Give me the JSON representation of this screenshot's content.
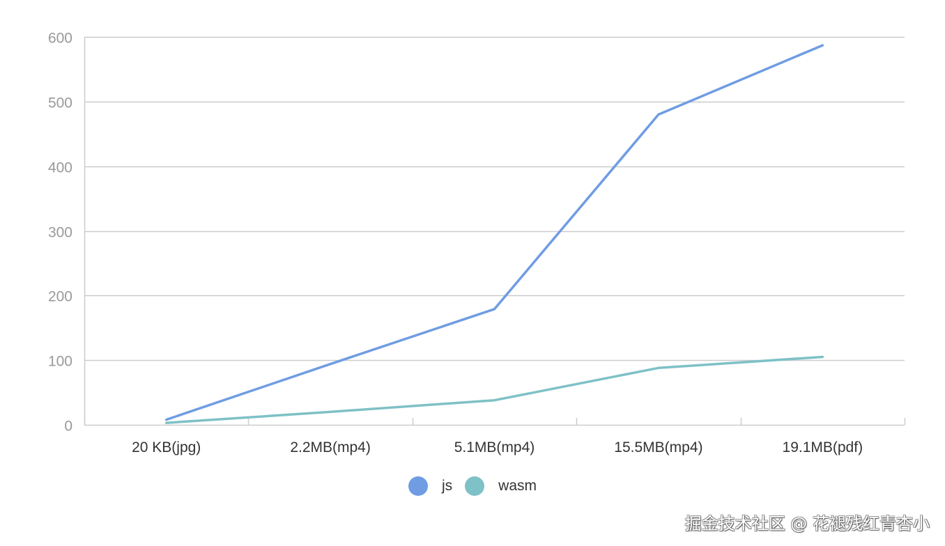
{
  "chart_data": {
    "type": "line",
    "title": "",
    "xlabel": "",
    "ylabel": "",
    "categories": [
      "20 KB(jpg)",
      "2.2MB(mp4)",
      "5.1MB(mp4)",
      "15.5MB(mp4)",
      "19.1MB(pdf)"
    ],
    "series": [
      {
        "name": "js",
        "color": "#6f9ce3",
        "values": [
          8,
          94,
          179,
          480,
          587
        ]
      },
      {
        "name": "wasm",
        "color": "#7ec1c6",
        "values": [
          3,
          20,
          38,
          88,
          105
        ]
      }
    ],
    "ylim": [
      0,
      600
    ],
    "yticks": [
      0,
      100,
      200,
      300,
      400,
      500,
      600
    ],
    "grid": true,
    "legend_position": "bottom"
  },
  "axis": {
    "yticks": [
      "0",
      "100",
      "200",
      "300",
      "400",
      "500",
      "600"
    ],
    "xticks": [
      "20 KB(jpg)",
      "2.2MB(mp4)",
      "5.1MB(mp4)",
      "15.5MB(mp4)",
      "19.1MB(pdf)"
    ]
  },
  "legend": {
    "items": [
      {
        "label": "js",
        "color": "#6f9ce3"
      },
      {
        "label": "wasm",
        "color": "#7ec1c6"
      }
    ]
  },
  "colors": {
    "grid": "#cccccc",
    "axis": "#cccccc",
    "ytick_text": "#999999",
    "xtick_text": "#333333"
  },
  "watermark": {
    "text": "掘金技术社区 @ 花褪残红青杏小"
  }
}
